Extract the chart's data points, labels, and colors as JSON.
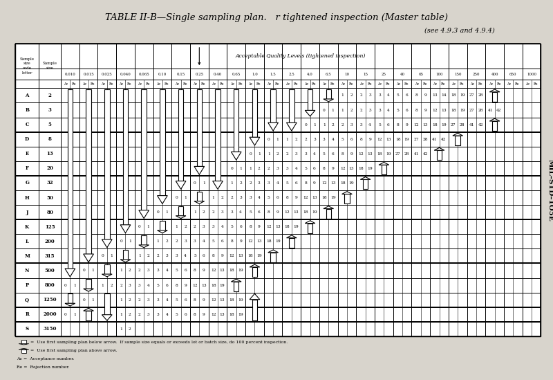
{
  "title": "TABLE II-B—Single sampling plan.   r tightened inspection (Master table)",
  "subtitle": "(see 4.9.3 and 4.9.4)",
  "side_label": "MIL–STD–1O5E",
  "aql_header": "Acceptable Quality Levels (tightened inspection)",
  "aql_values": [
    "0.010",
    "0.015",
    "0.025",
    "0.040",
    "0.065",
    "0.10",
    "0.15",
    "0.25",
    "0.40",
    "0.65",
    "1.0",
    "1.5",
    "2.5",
    "4.0",
    "6.5",
    "10",
    "15",
    "25",
    "40",
    "65",
    "100",
    "150",
    "250",
    "400",
    "650",
    "1000"
  ],
  "row_letters": [
    "A",
    "B",
    "C",
    "D",
    "E",
    "F",
    "G",
    "H",
    "J",
    "K",
    "L",
    "M",
    "N",
    "P",
    "Q",
    "R",
    "S"
  ],
  "row_sizes": [
    "2",
    "3",
    "5",
    "8",
    "13",
    "20",
    "32",
    "50",
    "80",
    "125",
    "200",
    "315",
    "500",
    "800",
    "1250",
    "2000",
    "3150"
  ],
  "row_groups": [
    0,
    0,
    0,
    1,
    1,
    1,
    2,
    2,
    2,
    3,
    3,
    3,
    4,
    4,
    4,
    5,
    6
  ],
  "bg_color": "#d8d4cc",
  "table_bg": "#ffffff",
  "legend_down": "Use first sampling plan below arrow.  If sample size equals or exceeds lot or batch size, do 100 percent inspection.",
  "legend_up": "Use first sampling plan above arrow.",
  "legend_ac": "Acceptance number.",
  "legend_re": "Rejection number.",
  "cell_data": {
    "0,0": "D",
    "0,1": "D",
    "0,2": "D",
    "0,3": "D",
    "0,4": "D",
    "0,5": "D",
    "0,6": "D",
    "0,7": "D",
    "0,8": "D",
    "0,9": "D",
    "0,10": "D",
    "0,11": "D",
    "0,12": "D",
    "0,13": "D",
    "0,14": "D",
    "0,15": "1 2",
    "0,16": "2 3",
    "0,17": "3 4",
    "0,18": "5 6",
    "0,19": "8 9",
    "0,20": "13 14",
    "0,21": "18 19",
    "0,22": "27 28",
    "0,23": "U",
    "1,0": "D",
    "1,1": "D",
    "1,2": "D",
    "1,3": "D",
    "1,4": "D",
    "1,5": "D",
    "1,6": "D",
    "1,7": "D",
    "1,8": "D",
    "1,9": "D",
    "1,10": "D",
    "1,11": "D",
    "1,12": "D",
    "1,13": "D",
    "1,14": "0 1",
    "1,15": "1 2",
    "1,16": "2 3",
    "1,17": "3 4",
    "1,18": "5 6",
    "1,19": "8 9",
    "1,20": "12 13",
    "1,21": "18 19",
    "1,22": "27 28",
    "1,23": "41 42",
    "2,0": "D",
    "2,1": "D",
    "2,2": "D",
    "2,3": "D",
    "2,4": "D",
    "2,5": "D",
    "2,6": "D",
    "2,7": "D",
    "2,8": "D",
    "2,9": "D",
    "2,10": "D",
    "2,11": "D",
    "2,12": "D",
    "2,13": "0 1",
    "2,14": "1 2",
    "2,15": "2 3",
    "2,16": "3 4",
    "2,17": "5 6",
    "2,18": "8 9",
    "2,19": "12 13",
    "2,20": "18 19",
    "2,21": "27 28",
    "2,22": "41 42",
    "2,23": "U",
    "3,0": "D",
    "3,1": "D",
    "3,2": "D",
    "3,3": "D",
    "3,4": "D",
    "3,5": "D",
    "3,6": "D",
    "3,7": "D",
    "3,8": "D",
    "3,9": "D",
    "3,10": "D",
    "3,11": "0 1",
    "3,12": "1 2",
    "3,13": "2 3",
    "3,14": "3 4",
    "3,15": "5 6",
    "3,16": "8 9",
    "3,17": "12 13",
    "3,18": "18 19",
    "3,19": "27 28",
    "3,20": "41 42",
    "3,21": "U",
    "4,0": "D",
    "4,1": "D",
    "4,2": "D",
    "4,3": "D",
    "4,4": "D",
    "4,5": "D",
    "4,6": "D",
    "4,7": "D",
    "4,8": "D",
    "4,9": "D",
    "4,10": "0 1",
    "4,11": "1 2",
    "4,12": "2 3",
    "4,13": "3 4",
    "4,14": "5 6",
    "4,15": "8 9",
    "4,16": "12 13",
    "4,17": "18 19",
    "4,18": "27 28",
    "4,19": "41 42",
    "4,20": "U",
    "5,0": "D",
    "5,1": "D",
    "5,2": "D",
    "5,3": "D",
    "5,4": "D",
    "5,5": "D",
    "5,6": "D",
    "5,7": "D",
    "5,8": "D",
    "5,9": "0 1",
    "5,10": "1 2",
    "5,11": "2 3",
    "5,12": "3 4",
    "5,13": "5 6",
    "5,14": "8 9",
    "5,15": "12 13",
    "5,16": "18 19",
    "5,17": "U",
    "6,0": "D",
    "6,1": "D",
    "6,2": "D",
    "6,3": "D",
    "6,4": "D",
    "6,5": "D",
    "6,6": "D",
    "6,7": "0 1",
    "6,8": "D",
    "6,9": "1 2",
    "6,10": "2 3",
    "6,11": "3 4",
    "6,12": "5 6",
    "6,13": "8 9",
    "6,14": "12 13",
    "6,15": "18 19",
    "6,16": "U",
    "7,0": "D",
    "7,1": "D",
    "7,2": "D",
    "7,3": "D",
    "7,4": "D",
    "7,5": "D",
    "7,6": "0 1",
    "7,7": "D",
    "7,8": "1 2",
    "7,9": "2 3",
    "7,10": "3 4",
    "7,11": "5 6",
    "7,12": "8 9",
    "7,13": "12 13",
    "7,14": "18 19",
    "7,15": "U",
    "8,0": "D",
    "8,1": "D",
    "8,2": "D",
    "8,3": "D",
    "8,4": "D",
    "8,5": "0 1",
    "8,6": "D",
    "8,7": "1 2",
    "8,8": "2 3",
    "8,9": "3 4",
    "8,10": "5 6",
    "8,11": "8 9",
    "8,12": "12 13",
    "8,13": "18 19",
    "8,14": "U",
    "9,0": "D",
    "9,1": "D",
    "9,2": "D",
    "9,3": "D",
    "9,4": "0 1",
    "9,5": "D",
    "9,6": "1 2",
    "9,7": "2 3",
    "9,8": "3 4",
    "9,9": "5 6",
    "9,10": "8 9",
    "9,11": "12 13",
    "9,12": "18 19",
    "9,13": "U",
    "10,0": "D",
    "10,1": "D",
    "10,2": "D",
    "10,3": "0 1",
    "10,4": "D",
    "10,5": "1 2",
    "10,6": "2 3",
    "10,7": "3 4",
    "10,8": "5 6",
    "10,9": "8 9",
    "10,10": "12 13",
    "10,11": "18 19",
    "10,12": "U",
    "11,0": "D",
    "11,1": "D",
    "11,2": "0 1",
    "11,3": "D",
    "11,4": "1 2",
    "11,5": "2 3",
    "11,6": "3 4",
    "11,7": "5 6",
    "11,8": "8 9",
    "11,9": "12 13",
    "11,10": "18 19",
    "11,11": "U",
    "12,0": "D",
    "12,1": "0 1",
    "12,2": "D",
    "12,3": "1 2",
    "12,4": "2 3",
    "12,5": "3 4",
    "12,6": "5 6",
    "12,7": "8 9",
    "12,8": "12 13",
    "12,9": "18 19",
    "12,10": "U",
    "13,0": "0 1",
    "13,1": "D",
    "13,2": "1 2",
    "13,3": "2 3",
    "13,4": "3 4",
    "13,5": "5 6",
    "13,6": "8 9",
    "13,7": "12 13",
    "13,8": "18 19",
    "13,9": "U",
    "14,0": "D",
    "14,1": "0 1",
    "14,2": "D",
    "14,3": "1 2",
    "14,4": "2 3",
    "14,5": "3 4",
    "14,6": "5 6",
    "14,7": "8 9",
    "14,8": "12 13",
    "14,9": "18 19",
    "14,10": "U",
    "15,0": "0 1",
    "15,1": "U",
    "15,2": "D",
    "15,3": "1 2",
    "15,4": "2 3",
    "15,5": "3 4",
    "15,6": "5 6",
    "15,7": "8 9",
    "15,8": "12 13",
    "15,9": "18 19",
    "15,10": "U",
    "16,3": "1 2"
  }
}
